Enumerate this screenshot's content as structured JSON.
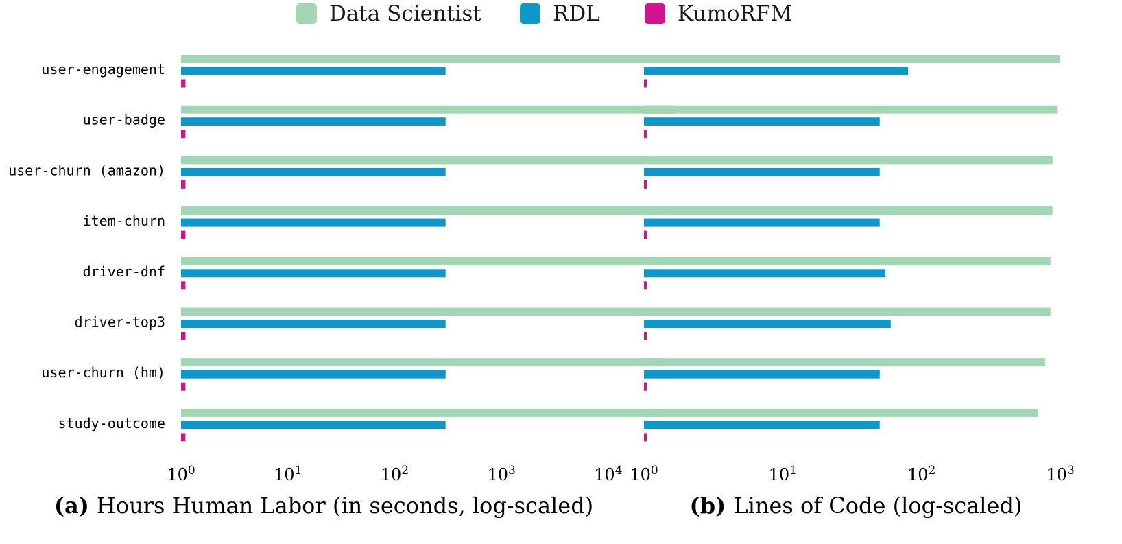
{
  "legend": {
    "placement": "top-center",
    "items": [
      {
        "label": "Data Scientist",
        "color": "#a3d6b5"
      },
      {
        "label": "RDL",
        "color": "#0f97c9"
      },
      {
        "label": "KumoRFM",
        "color": "#cf1690"
      }
    ]
  },
  "chart_data": [
    {
      "type": "bar",
      "orientation": "horizontal",
      "caption_tag": "(a)",
      "caption_text": "Hours Human Labor (in seconds, log-scaled)",
      "x_scale": "log",
      "xlim": [
        1,
        60000
      ],
      "x_ticks": [
        {
          "value": 1,
          "base": "10",
          "exp": "0"
        },
        {
          "value": 10,
          "base": "10",
          "exp": "1"
        },
        {
          "value": 100,
          "base": "10",
          "exp": "2"
        },
        {
          "value": 1000,
          "base": "10",
          "exp": "3"
        },
        {
          "value": 10000,
          "base": "10",
          "exp": "4"
        }
      ],
      "grid": false,
      "categories": [
        "user-engagement",
        "user-badge",
        "user-churn (amazon)",
        "item-churn",
        "driver-dnf",
        "driver-top3",
        "user-churn (hm)",
        "study-outcome"
      ],
      "series": [
        {
          "name": "Data Scientist",
          "color": "#a3d6b5",
          "values": [
            39600,
            43200,
            32400,
            32400,
            28800,
            28800,
            32400,
            32400
          ]
        },
        {
          "name": "RDL",
          "color": "#0f97c9",
          "values": [
            300,
            300,
            300,
            300,
            300,
            300,
            300,
            300
          ]
        },
        {
          "name": "KumoRFM",
          "color": "#cf1690",
          "values": [
            1.1,
            1.1,
            1.1,
            1.1,
            1.1,
            1.1,
            1.1,
            1.1
          ]
        }
      ]
    },
    {
      "type": "bar",
      "orientation": "horizontal",
      "caption_tag": "(b)",
      "caption_text": "Lines of Code (log-scaled)",
      "x_scale": "log",
      "xlim": [
        1,
        1000
      ],
      "x_ticks": [
        {
          "value": 1,
          "base": "10",
          "exp": "0"
        },
        {
          "value": 10,
          "base": "10",
          "exp": "1"
        },
        {
          "value": 100,
          "base": "10",
          "exp": "2"
        },
        {
          "value": 1000,
          "base": "10",
          "exp": "3"
        }
      ],
      "grid": false,
      "categories": [
        "user-engagement",
        "user-badge",
        "user-churn (amazon)",
        "item-churn",
        "driver-dnf",
        "driver-top3",
        "user-churn (hm)",
        "study-outcome"
      ],
      "series": [
        {
          "name": "Data Scientist",
          "color": "#a3d6b5",
          "values": [
            1000,
            950,
            880,
            880,
            850,
            850,
            780,
            690
          ]
        },
        {
          "name": "RDL",
          "color": "#0f97c9",
          "values": [
            80,
            50,
            50,
            50,
            55,
            60,
            50,
            50
          ]
        },
        {
          "name": "KumoRFM",
          "color": "#cf1690",
          "values": [
            1.03,
            1.03,
            1.03,
            1.03,
            1.03,
            1.03,
            1.03,
            1.03
          ]
        }
      ]
    }
  ]
}
